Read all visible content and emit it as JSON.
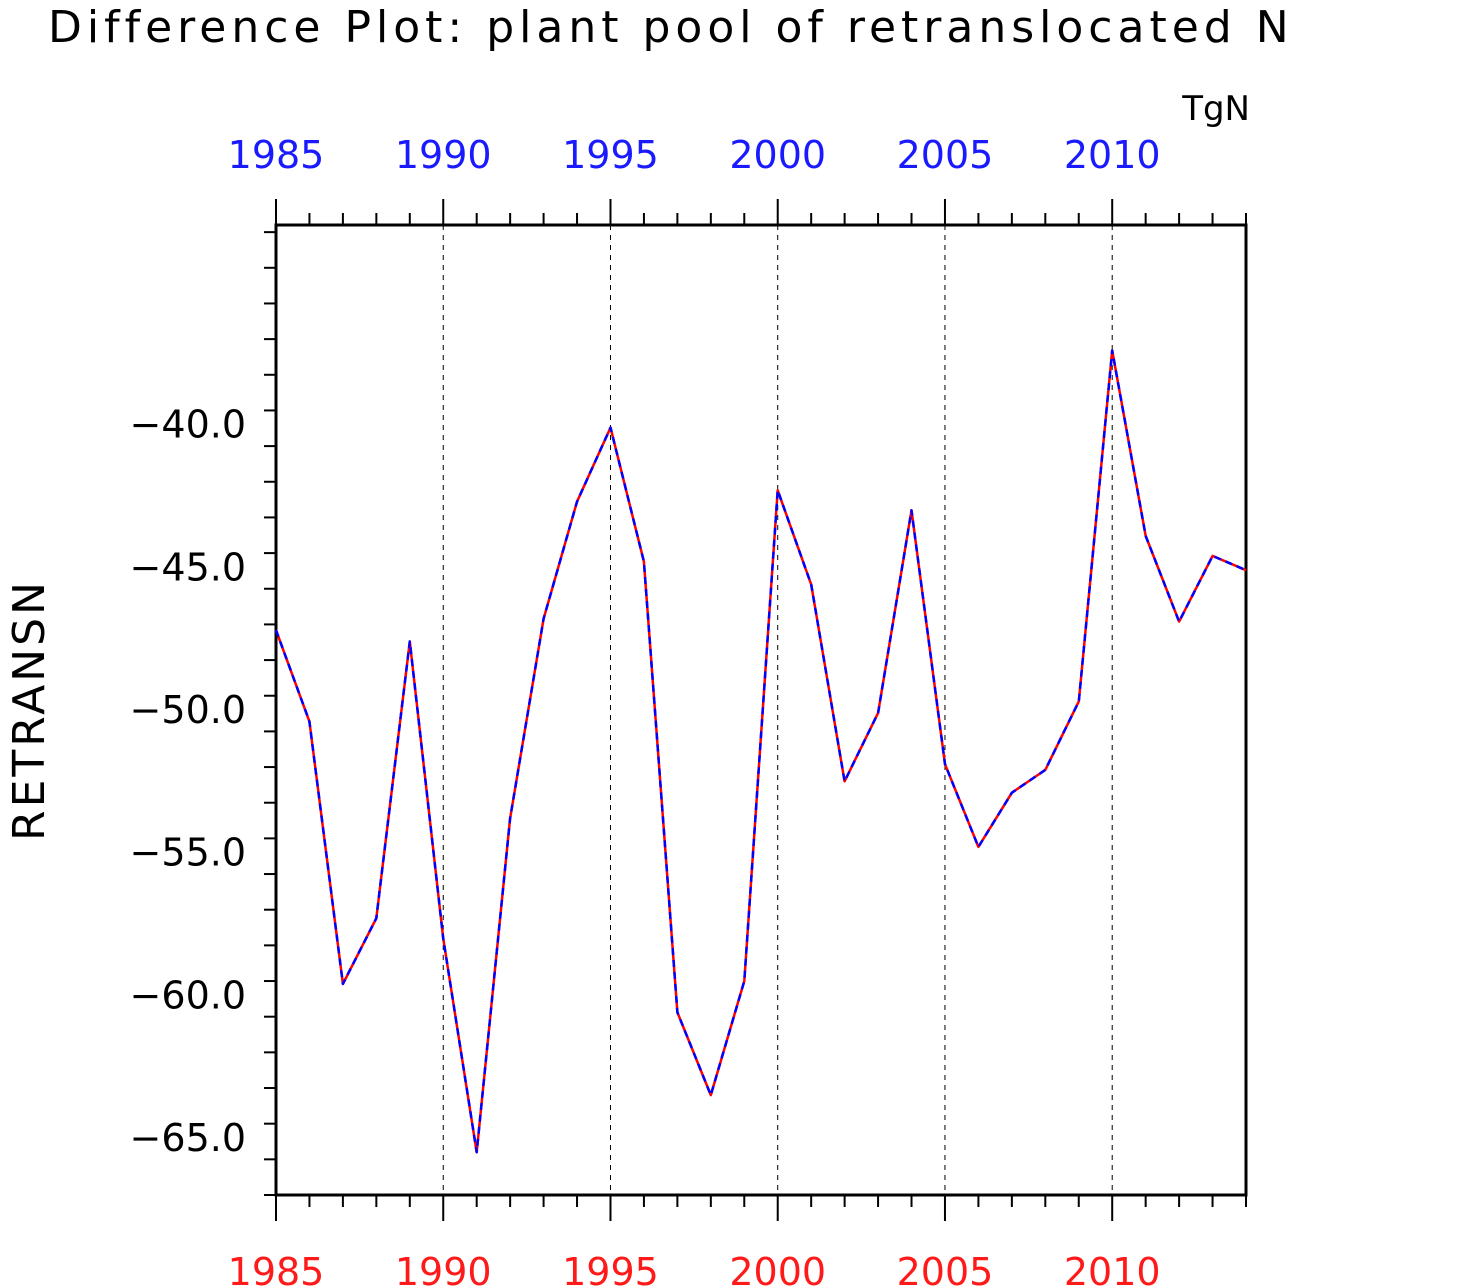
{
  "chart_data": {
    "type": "line",
    "title": "Difference Plot: plant pool of retranslocated N",
    "units": "TgN",
    "ylabel": "RETRANSN",
    "xlabel": "",
    "xlim": [
      1985,
      2014
    ],
    "ylim": [
      -67,
      -33
    ],
    "x_ticks": [
      1985,
      1990,
      1995,
      2000,
      2005,
      2010
    ],
    "x_tick_labels": [
      "1985",
      "1990",
      "1995",
      "2000",
      "2005",
      "2010"
    ],
    "y_ticks": [
      -40,
      -45,
      -50,
      -55,
      -60,
      -65
    ],
    "y_tick_labels": [
      "−40.0",
      "−45.0",
      "−50.0",
      "−55.0",
      "−60.0",
      "−65.0"
    ],
    "grid": "vertical dashed at major x ticks",
    "top_axis_color": "#1a1aff",
    "bottom_axis_color": "#ff1a1a",
    "x": [
      1985,
      1986,
      1987,
      1988,
      1989,
      1990,
      1991,
      1992,
      1993,
      1994,
      1995,
      1996,
      1997,
      1998,
      1999,
      2000,
      2001,
      2002,
      2003,
      2004,
      2005,
      2006,
      2007,
      2008,
      2009,
      2010,
      2011,
      2012,
      2013,
      2014
    ],
    "series": [
      {
        "color": "#ff0000",
        "style": "solid",
        "values": [
          -47.2,
          -50.4,
          -59.6,
          -57.3,
          -47.6,
          -58.0,
          -65.5,
          -53.8,
          -46.8,
          -42.7,
          -40.1,
          -44.8,
          -60.6,
          -63.5,
          -59.5,
          -42.3,
          -45.6,
          -52.5,
          -50.1,
          -43.0,
          -51.9,
          -54.8,
          -52.9,
          -52.1,
          -49.7,
          -37.4,
          -43.9,
          -46.9,
          -44.6,
          -45.1
        ]
      },
      {
        "color": "#0000ff",
        "style": "dashed",
        "values": [
          -47.2,
          -50.4,
          -59.6,
          -57.3,
          -47.6,
          -58.0,
          -65.5,
          -53.8,
          -46.8,
          -42.7,
          -40.1,
          -44.8,
          -60.6,
          -63.5,
          -59.5,
          -42.3,
          -45.6,
          -52.5,
          -50.1,
          -43.0,
          -51.9,
          -54.8,
          -52.9,
          -52.1,
          -49.7,
          -37.4,
          -43.9,
          -46.9,
          -44.6,
          -45.1
        ]
      }
    ]
  }
}
